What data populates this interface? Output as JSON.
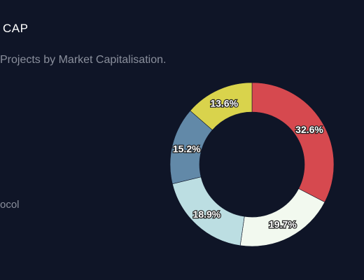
{
  "header": {
    "title": "CAP",
    "subtitle": "Projects by Market Capitalisation."
  },
  "legend": {
    "visible_text": "ocol"
  },
  "chart_data": {
    "type": "pie",
    "variant": "donut",
    "title": "",
    "slices": [
      {
        "value": 32.6,
        "label": "32.6%",
        "color": "#d6494f"
      },
      {
        "value": 19.7,
        "label": "19.7%",
        "color": "#f2f9ef"
      },
      {
        "value": 18.9,
        "label": "18.9%",
        "color": "#bcdee2"
      },
      {
        "value": 15.2,
        "label": "15.2%",
        "color": "#6289a8"
      },
      {
        "value": 13.6,
        "label": "13.6%",
        "color": "#d9d34c"
      }
    ],
    "legend": "left",
    "start_angle": "12 o'clock, clockwise"
  }
}
